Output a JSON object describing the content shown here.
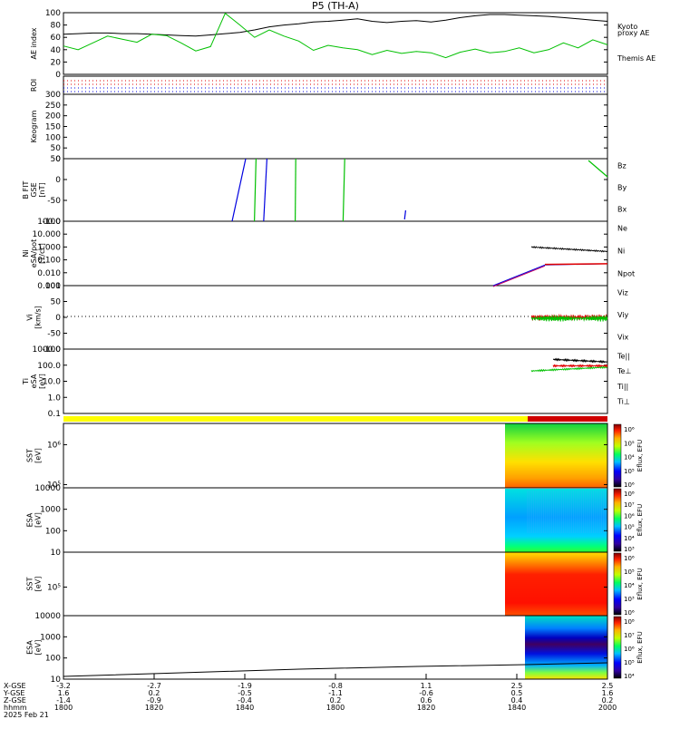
{
  "title": "P5 (TH-A)",
  "colors": {
    "black": "#000000",
    "green": "#00c000",
    "red": "#e00000",
    "blue": "#0000e0",
    "yellow": "#ffff00",
    "bar_red": "#d00000",
    "magenta": "#c00060"
  },
  "panels": [
    {
      "id": "ae",
      "ylabel": "AE index",
      "yticks": [
        "100",
        "80",
        "60",
        "40",
        "20",
        "0"
      ],
      "legend": [
        {
          "text": "Kyoto",
          "color": "#00c000"
        },
        {
          "text": "proxy AE",
          "color": "#00c000"
        },
        {
          "text": "Themis AE",
          "color": "#000000"
        }
      ]
    },
    {
      "id": "roi",
      "ylabel": "ROI",
      "yticks": []
    },
    {
      "id": "keogram",
      "ylabel": "Keogram",
      "yticks": [
        "300",
        "250",
        "200",
        "150",
        "100",
        "50",
        "0"
      ]
    },
    {
      "id": "bfit",
      "ylabel_lines": [
        "B FIT",
        "GSE",
        "[nT]"
      ],
      "yticks": [
        "50",
        "0",
        "-50",
        "-100"
      ],
      "legend": [
        {
          "text": "Bz",
          "color": "#e00000"
        },
        {
          "text": "By",
          "color": "#00c000"
        },
        {
          "text": "Bx",
          "color": "#0000e0"
        }
      ]
    },
    {
      "id": "ni",
      "ylabel_lines": [
        "Ni",
        "eSA/pot",
        "[1/cc]"
      ],
      "yticks": [
        "100.0",
        "10.000",
        "1.000",
        "0.100",
        "0.010",
        "0.001"
      ],
      "legend": [
        {
          "text": "Ne",
          "color": "#e00000"
        },
        {
          "text": "Ni",
          "color": "#000000"
        },
        {
          "text": "Npot",
          "color": "#0000e0"
        }
      ]
    },
    {
      "id": "vi",
      "ylabel_lines": [
        "Vi",
        "[km/s]"
      ],
      "yticks": [
        "100",
        "50",
        "0",
        "-50",
        "-100"
      ],
      "legend": [
        {
          "text": "Viz",
          "color": "#e00000"
        },
        {
          "text": "Viy",
          "color": "#00c000"
        },
        {
          "text": "Vix",
          "color": "#0000e0"
        }
      ]
    },
    {
      "id": "ti",
      "ylabel_lines": [
        "Ti",
        "eSA",
        "[eV]"
      ],
      "yticks": [
        "1000.0",
        "100.0",
        "10.0",
        "1.0",
        "0.1"
      ],
      "legend": [
        {
          "text": "Te||",
          "color": "#000000"
        },
        {
          "text": "Te⊥",
          "color": "#e00000"
        },
        {
          "text": "Ti||",
          "color": "#00c000"
        },
        {
          "text": "Ti⊥",
          "color": "#0000e0"
        }
      ]
    },
    {
      "id": "sst_e",
      "ylabel_lines": [
        "SST",
        "[eV]"
      ],
      "yticks": [
        "10⁶",
        "10⁵"
      ],
      "cb_label": "Eflux, EFU",
      "cb_ticks": [
        "10⁶",
        "10⁵",
        "10⁴",
        "10⁵",
        "10⁶"
      ]
    },
    {
      "id": "esa_e",
      "ylabel_lines": [
        "ESA",
        "[eV]"
      ],
      "yticks": [
        "10000",
        "1000",
        "100",
        "10"
      ],
      "cb_label": "Eflux, EFU",
      "cb_ticks": [
        "10⁸",
        "10⁷",
        "10⁶",
        "10⁵",
        "10⁴",
        "10³"
      ]
    },
    {
      "id": "sst_i",
      "ylabel_lines": [
        "SST",
        "[eV]"
      ],
      "yticks": [
        "10⁵"
      ],
      "cb_label": "Eflux, EFU",
      "cb_ticks": [
        "10⁶",
        "10⁵",
        "10⁴",
        "10³",
        "10⁶"
      ]
    },
    {
      "id": "esa_i",
      "ylabel_lines": [
        "ESA",
        "[eV]"
      ],
      "yticks": [
        "10000",
        "1000",
        "100",
        "10"
      ],
      "cb_label": "Eflux, EFU",
      "cb_ticks": [
        "10⁸",
        "10⁷",
        "10⁶",
        "10⁵",
        "10⁴"
      ]
    }
  ],
  "x_axis": {
    "row_labels": [
      "X-GSE",
      "Y-GSE",
      "Z-GSE",
      "hhmm",
      "2025 Feb 21"
    ],
    "ticks": [
      {
        "x": [
          "-3.2",
          "1.6",
          "-1.4"
        ],
        "t": "1800"
      },
      {
        "x": [
          "-2.7",
          "0.2",
          "-0.9"
        ],
        "t": "1820"
      },
      {
        "x": [
          "-1.9",
          "-0.5",
          "-0.4"
        ],
        "t": "1840"
      },
      {
        "x": [
          "-0.8",
          "-1.1",
          "0.2"
        ],
        "t": "1800"
      },
      {
        "x": [
          "1.1",
          "-0.6",
          "0.6"
        ],
        "t": "1820"
      },
      {
        "x": [
          "2.5",
          "0.5",
          "0.4"
        ],
        "t": "1840"
      },
      {
        "x": [
          "2.5",
          "1.6",
          "0.2"
        ],
        "t": "2000"
      }
    ]
  },
  "chart_data": {
    "type": "line",
    "title": "P5 (TH-A)",
    "x_time_ticks": [
      "1800",
      "1820",
      "1840",
      "1800",
      "1820",
      "1840",
      "2000"
    ],
    "ae_index": {
      "ylim": [
        0,
        100
      ],
      "series": [
        {
          "name": "Themis AE",
          "values": [
            65,
            66,
            67,
            67,
            66,
            66,
            65,
            64,
            63,
            62,
            64,
            66,
            68,
            72,
            77,
            80,
            82,
            85,
            86,
            88,
            90,
            86,
            84,
            86,
            87,
            85,
            88,
            92,
            95,
            97,
            97,
            96,
            95,
            94,
            92,
            90,
            88,
            86
          ]
        },
        {
          "name": "Kyoto proxy AE",
          "values": [
            46,
            40,
            51,
            62,
            57,
            52,
            65,
            63,
            51,
            38,
            45,
            99,
            80,
            60,
            72,
            62,
            54,
            39,
            47,
            43,
            40,
            32,
            39,
            34,
            37,
            35,
            27,
            36,
            41,
            35,
            37,
            43,
            35,
            40,
            51,
            43,
            56,
            48
          ]
        }
      ]
    },
    "b_fit": {
      "ylim": [
        -100,
        100
      ],
      "series": [
        {
          "name": "Bx",
          "segments": [
            [
              0.31,
              0.335
            ],
            [
              0.368,
              0.374
            ],
            [
              0.627,
              0.629
            ]
          ]
        },
        {
          "name": "By",
          "segments": [
            [
              0.351,
              0.354
            ],
            [
              0.426,
              0.427
            ],
            [
              0.514,
              0.517
            ],
            [
              0.965,
              1.0
            ]
          ]
        }
      ]
    },
    "ni": {
      "ylim": [
        0.001,
        100
      ],
      "series": [
        {
          "name": "Ni",
          "start": 0.86,
          "end": 1.0,
          "values_log10": [
            0.0,
            -0.35
          ]
        },
        {
          "name": "Npot",
          "start": 0.79,
          "end": 1.0,
          "values_log10": [
            -3.0,
            -1.4,
            -1.3
          ]
        }
      ]
    },
    "vi": {
      "ylim": [
        -150,
        150
      ],
      "series": [
        {
          "name": "Viz",
          "start": 0.86,
          "end": 1.0,
          "mean": 0
        },
        {
          "name": "Viy",
          "start": 0.86,
          "end": 1.0,
          "mean": -5
        }
      ]
    },
    "ti": {
      "ylim": [
        0.1,
        10000
      ],
      "series": [
        {
          "name": "Te||",
          "start": 0.9,
          "end": 1.0,
          "values_log10": [
            3.2,
            3.0
          ]
        },
        {
          "name": "Ti||",
          "start": 0.86,
          "end": 1.0,
          "values_log10": [
            2.3,
            2.6
          ]
        },
        {
          "name": "Te⊥",
          "start": 0.9,
          "end": 1.0,
          "values_log10": [
            2.7,
            2.7
          ]
        }
      ]
    }
  }
}
